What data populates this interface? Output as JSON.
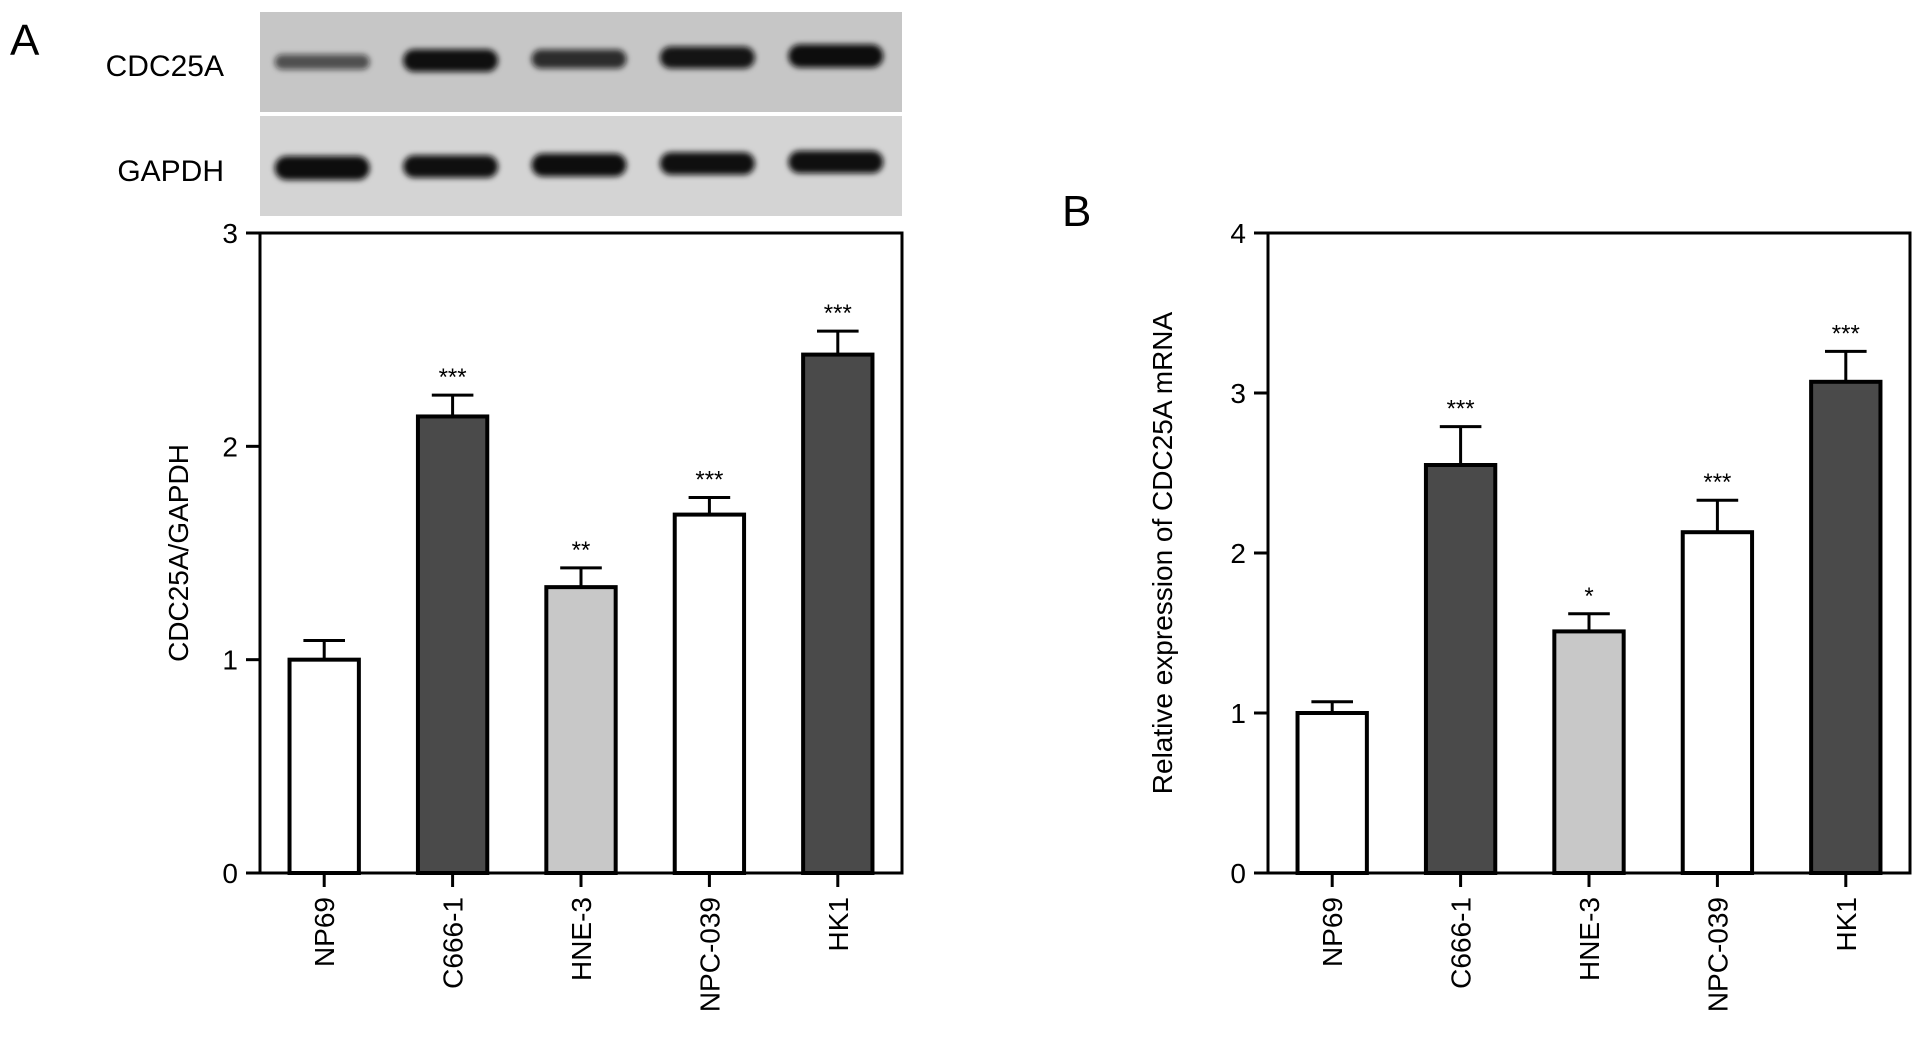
{
  "panels": [
    {
      "panel_label": "A",
      "blot": {
        "rows": [
          {
            "label": "CDC25A",
            "intensities": [
              0.35,
              0.9,
              0.65,
              0.85,
              0.95
            ]
          },
          {
            "label": "GAPDH",
            "intensities": [
              1.0,
              0.9,
              0.92,
              0.9,
              0.9
            ]
          }
        ]
      }
    },
    {
      "panel_label": "B"
    }
  ],
  "chart_data": [
    {
      "type": "bar",
      "title": "",
      "xlabel": "",
      "ylabel": "CDC25A/GAPDH",
      "ylim": [
        0,
        3
      ],
      "yticks": [
        "0",
        "1",
        "2",
        "3"
      ],
      "grid": false,
      "categories": [
        "NP69",
        "C666-1",
        "HNE-3",
        "NPC-039",
        "HK1"
      ],
      "values": [
        1.0,
        2.14,
        1.34,
        1.68,
        2.43
      ],
      "errors": [
        0.09,
        0.1,
        0.09,
        0.08,
        0.11
      ],
      "significance": [
        "",
        "***",
        "**",
        "***",
        "***"
      ],
      "colors": [
        "#ffffff",
        "#4a4a4a",
        "#c8c8c8",
        "#ffffff",
        "#4a4a4a"
      ]
    },
    {
      "type": "bar",
      "title": "",
      "xlabel": "",
      "ylabel": "Relative expression of CDC25A mRNA",
      "ylim": [
        0,
        4
      ],
      "yticks": [
        "0",
        "1",
        "2",
        "3",
        "4"
      ],
      "grid": false,
      "categories": [
        "NP69",
        "C666-1",
        "HNE-3",
        "NPC-039",
        "HK1"
      ],
      "values": [
        1.0,
        2.55,
        1.51,
        2.13,
        3.07
      ],
      "errors": [
        0.07,
        0.24,
        0.11,
        0.2,
        0.19
      ],
      "significance": [
        "",
        "***",
        "*",
        "***",
        "***"
      ],
      "colors": [
        "#ffffff",
        "#4a4a4a",
        "#c8c8c8",
        "#ffffff",
        "#4a4a4a"
      ]
    }
  ]
}
